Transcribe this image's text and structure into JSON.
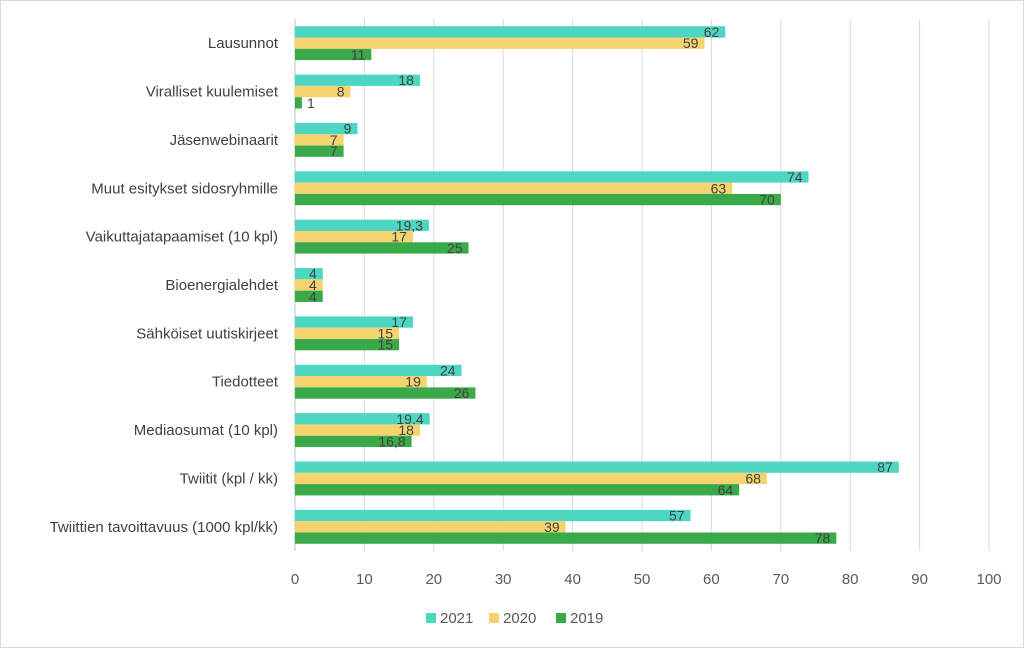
{
  "colors": {
    "s2021": "#4dd6c2",
    "s2020": "#f5d46f",
    "s2019": "#3aa94a",
    "grid": "#d9d9d9",
    "text": "#404040"
  },
  "chart_data": {
    "type": "bar",
    "orientation": "horizontal",
    "categories": [
      "Lausunnot",
      "Viralliset kuulemiset",
      "Jäsenwebinaarit",
      "Muut esitykset sidosryhmille",
      "Vaikuttajatapaamiset (10 kpl)",
      "Bioenergialehdet",
      "Sähköiset uutiskirjeet",
      "Tiedotteet",
      "Mediaosumat (10 kpl)",
      "Twiitit (kpl / kk)",
      "Twiittien tavoittavuus (1000 kpl/kk)"
    ],
    "series": [
      {
        "name": "2021",
        "values": [
          62,
          18,
          9,
          74,
          19.3,
          4,
          17,
          24,
          19.4,
          87,
          57
        ],
        "labels": [
          "62",
          "18",
          "9",
          "74",
          "19,3",
          "4",
          "17",
          "24",
          "19,4",
          "87",
          "57"
        ]
      },
      {
        "name": "2020",
        "values": [
          59,
          8,
          7,
          63,
          17,
          4,
          15,
          19,
          18,
          68,
          39
        ],
        "labels": [
          "59",
          "8",
          "7",
          "63",
          "17",
          "4",
          "15",
          "19",
          "18",
          "68",
          "39"
        ]
      },
      {
        "name": "2019",
        "values": [
          11,
          1,
          7,
          70,
          25,
          4,
          15,
          26,
          16.8,
          64,
          78
        ],
        "labels": [
          "11",
          "1",
          "7",
          "70",
          "25",
          "4",
          "15",
          "26",
          "16,8",
          "64",
          "78"
        ]
      }
    ],
    "xlim": [
      0,
      100
    ],
    "xticks": [
      "0",
      "10",
      "20",
      "30",
      "40",
      "50",
      "60",
      "70",
      "80",
      "90",
      "100"
    ],
    "grid": "vertical",
    "legend": "bottom"
  }
}
